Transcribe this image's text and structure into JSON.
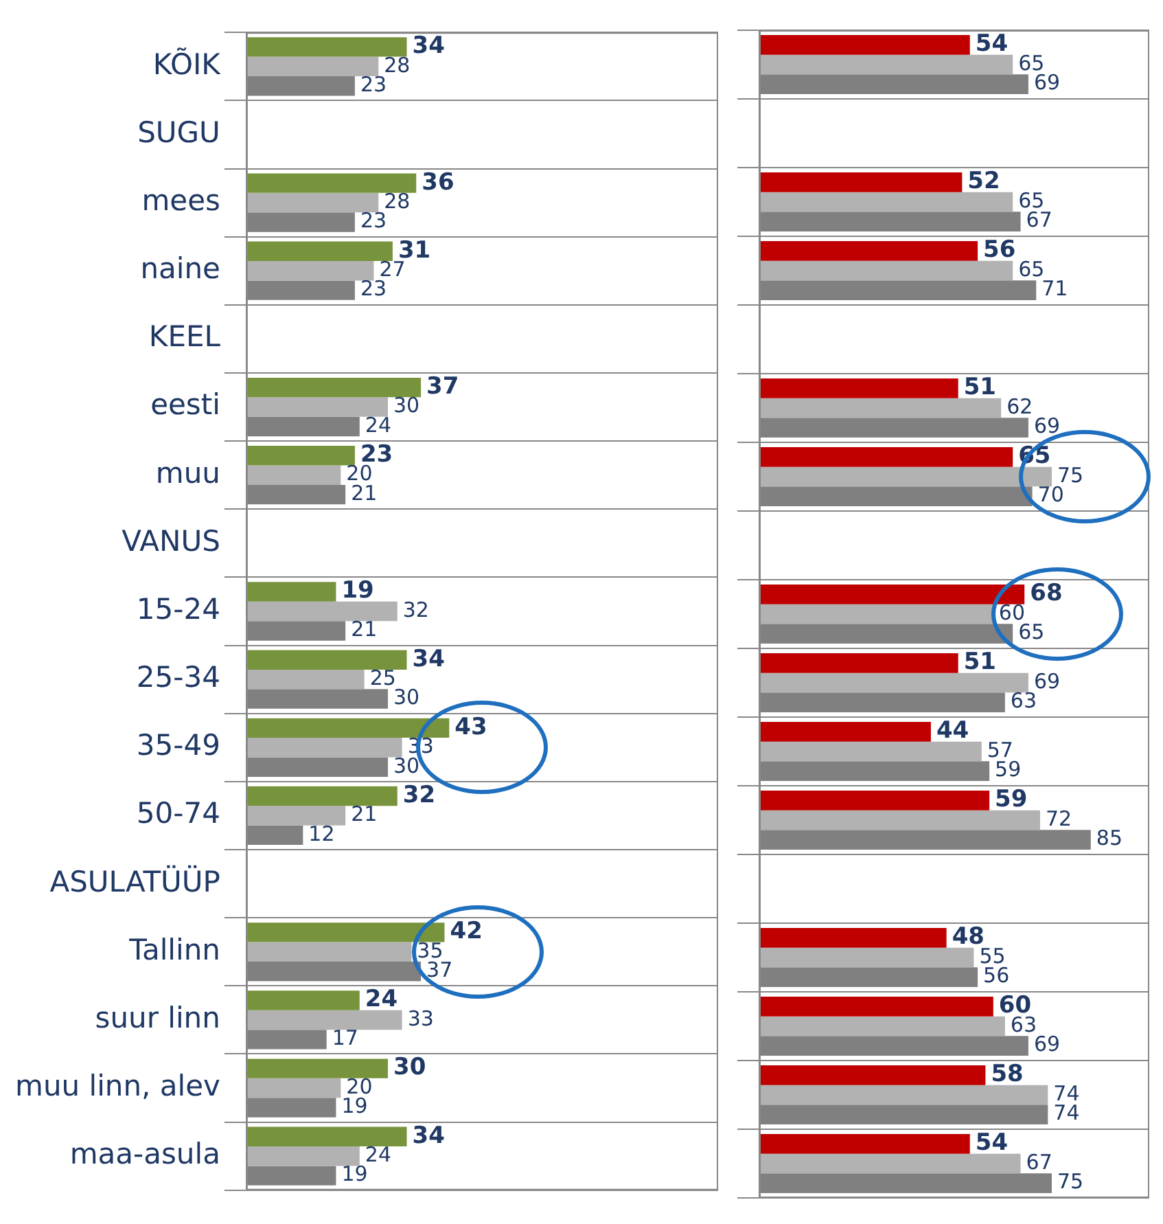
{
  "chart_data": [
    {
      "type": "bar",
      "orientation": "horizontal",
      "categories": [
        "KÕIK",
        "SUGU",
        "mees",
        "naine",
        "KEEL",
        "eesti",
        "muu",
        "VANUS",
        "15-24",
        "25-34",
        "35-49",
        "50-74",
        "ASULATÜÜP",
        "Tallinn",
        "suur linn",
        "muu linn, alev",
        "maa-asula"
      ],
      "series": [
        {
          "color": "#77933c",
          "values": [
            34,
            null,
            36,
            31,
            null,
            37,
            23,
            null,
            19,
            34,
            43,
            32,
            null,
            42,
            24,
            30,
            34
          ]
        },
        {
          "color": "#b2b2b2",
          "values": [
            28,
            null,
            28,
            27,
            null,
            30,
            20,
            null,
            32,
            25,
            33,
            21,
            null,
            35,
            33,
            20,
            24
          ]
        },
        {
          "color": "#808080",
          "values": [
            23,
            null,
            23,
            23,
            null,
            24,
            21,
            null,
            21,
            30,
            30,
            12,
            null,
            37,
            17,
            19,
            19
          ]
        }
      ],
      "xlim": [
        0,
        100
      ],
      "grid": "y",
      "legend": false,
      "tick_labels": "y",
      "data_labels": true
    },
    {
      "type": "bar",
      "orientation": "horizontal",
      "categories": [
        null,
        null,
        null,
        null,
        null,
        null,
        null,
        null,
        null,
        null,
        null,
        null,
        null,
        null,
        null,
        null,
        null
      ],
      "series": [
        {
          "color": "#c00000",
          "values": [
            54,
            null,
            52,
            56,
            null,
            51,
            65,
            null,
            68,
            51,
            44,
            59,
            null,
            48,
            60,
            58,
            54
          ]
        },
        {
          "color": "#b2b2b2",
          "values": [
            65,
            null,
            65,
            65,
            null,
            62,
            75,
            null,
            60,
            69,
            57,
            72,
            null,
            55,
            63,
            74,
            67
          ]
        },
        {
          "color": "#808080",
          "values": [
            69,
            null,
            67,
            71,
            null,
            69,
            70,
            null,
            65,
            63,
            59,
            85,
            null,
            56,
            69,
            74,
            75
          ]
        }
      ],
      "xlim": [
        0,
        100
      ],
      "grid": "y",
      "legend": false,
      "tick_labels": false,
      "data_labels": true
    }
  ]
}
